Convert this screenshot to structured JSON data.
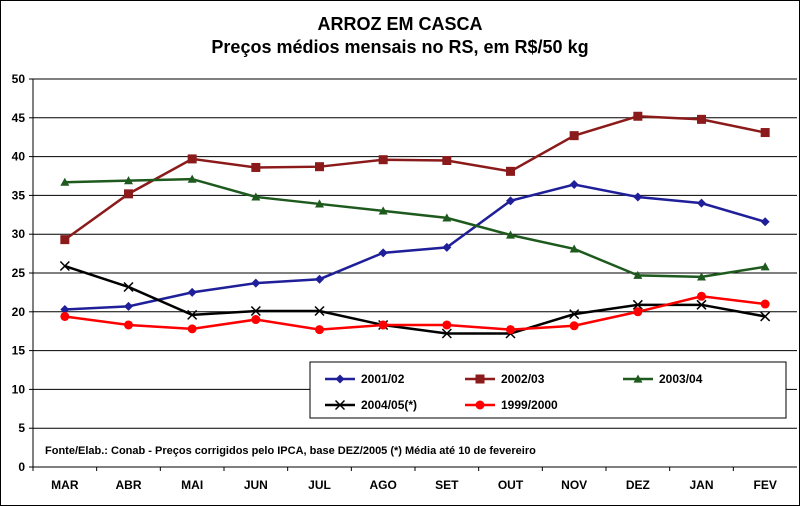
{
  "chart_data": {
    "type": "line",
    "title": "ARROZ EM CASCA",
    "subtitle": "Preços médios mensais no RS, em R$/50 kg",
    "categories": [
      "MAR",
      "ABR",
      "MAI",
      "JUN",
      "JUL",
      "AGO",
      "SET",
      "OUT",
      "NOV",
      "DEZ",
      "JAN",
      "FEV"
    ],
    "ylim": [
      0,
      50
    ],
    "yticks": [
      0,
      5,
      10,
      15,
      20,
      25,
      30,
      35,
      40,
      45,
      50
    ],
    "grid": true,
    "legend_position": "bottom-center-right",
    "series": [
      {
        "name": "2001/02",
        "color": "#1f1f99",
        "marker": "diamond",
        "values": [
          20.3,
          20.7,
          22.5,
          23.7,
          24.2,
          27.6,
          28.3,
          34.3,
          36.4,
          34.8,
          34.0,
          31.6
        ]
      },
      {
        "name": "2002/03",
        "color": "#8b1a1a",
        "marker": "square",
        "values": [
          29.3,
          35.2,
          39.7,
          38.6,
          38.7,
          39.6,
          39.5,
          38.1,
          42.7,
          45.2,
          44.8,
          43.1
        ]
      },
      {
        "name": "2003/04",
        "color": "#1e5a1e",
        "marker": "triangle",
        "values": [
          36.7,
          36.9,
          37.1,
          34.8,
          33.9,
          33.0,
          32.1,
          29.9,
          28.1,
          24.7,
          24.5,
          25.8
        ]
      },
      {
        "name": "2004/05(*)",
        "color": "#000000",
        "marker": "x",
        "values": [
          25.9,
          23.2,
          19.6,
          20.1,
          20.1,
          18.3,
          17.2,
          17.2,
          19.7,
          20.9,
          20.9,
          19.4
        ]
      },
      {
        "name": "1999/2000",
        "color": "#ff0000",
        "marker": "circle",
        "values": [
          19.4,
          18.3,
          17.8,
          19.0,
          17.7,
          18.3,
          18.3,
          17.7,
          18.2,
          20.0,
          22.0,
          21.0
        ]
      }
    ],
    "annotation": "Fonte/Elab.: Conab - Preços corrigidos pelo IPCA, base DEZ/2005 (*) Média até 10 de fevereiro"
  }
}
